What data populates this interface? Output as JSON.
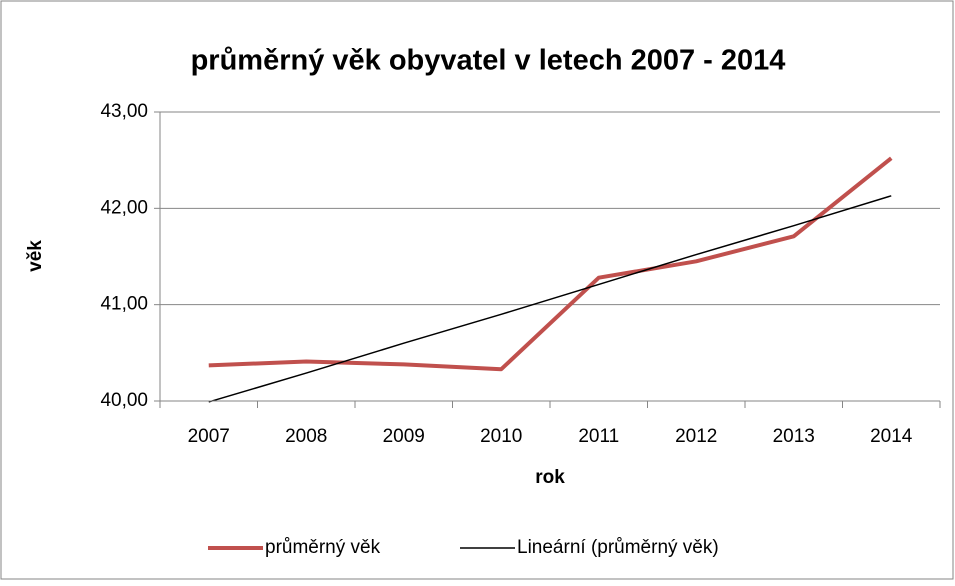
{
  "chart_data": {
    "type": "line",
    "title": "průměrný věk obyvatel v letech 2007 - 2014",
    "x_label": "rok",
    "y_label": "věk",
    "categories": [
      "2007",
      "2008",
      "2009",
      "2010",
      "2011",
      "2012",
      "2013",
      "2014"
    ],
    "series": [
      {
        "name": "průměrný věk",
        "color": "#c0504d",
        "values": [
          40.37,
          40.41,
          40.38,
          40.33,
          41.28,
          41.45,
          41.71,
          42.52
        ]
      },
      {
        "name": "Lineární (průměrný věk)",
        "color": "#000000",
        "values": [
          39.99,
          40.29,
          40.6,
          40.9,
          41.21,
          41.52,
          41.82,
          42.13
        ]
      }
    ],
    "ylim": [
      40,
      43
    ],
    "yticks": [
      {
        "value": 40,
        "label": "40,00"
      },
      {
        "value": 41,
        "label": "41,00"
      },
      {
        "value": 42,
        "label": "42,00"
      },
      {
        "value": 43,
        "label": "43,00"
      }
    ],
    "grid": true,
    "legend": "bottom"
  }
}
